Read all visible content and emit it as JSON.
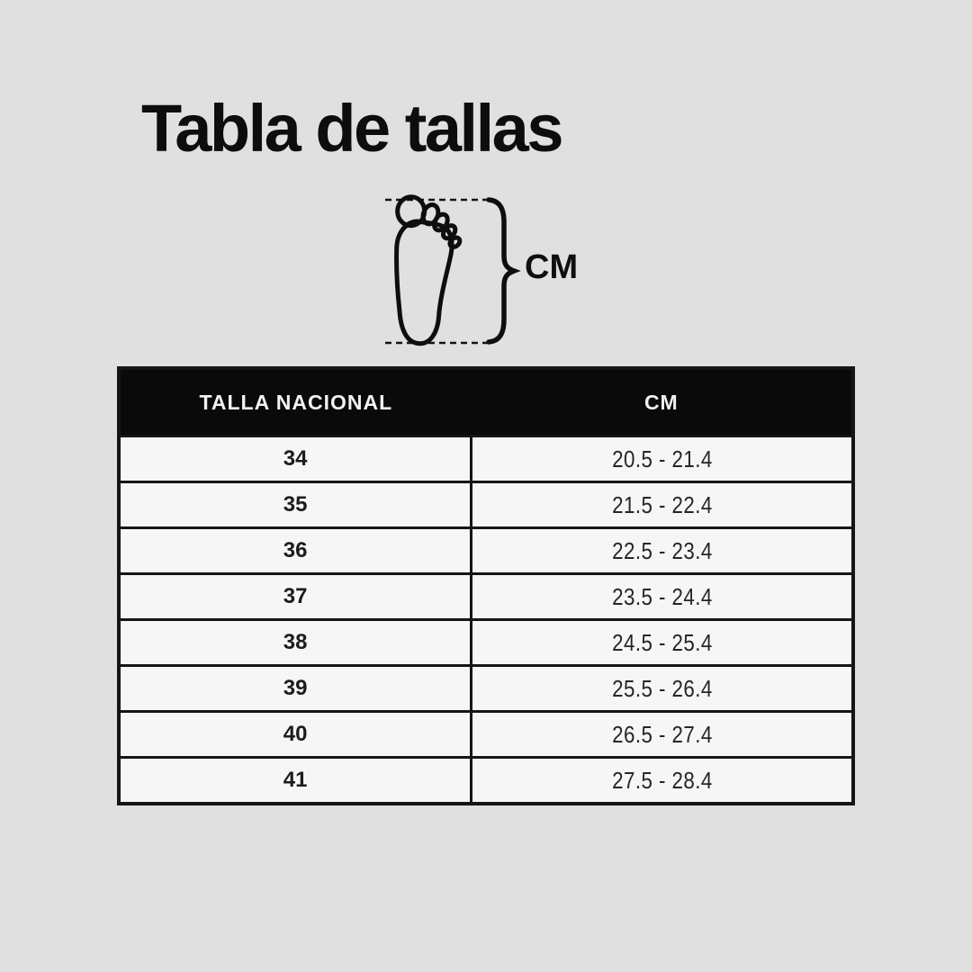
{
  "title": "Tabla de tallas",
  "diagram": {
    "unit_label": "CM",
    "icons": {
      "foot": "footprint-icon",
      "brace": "curly-brace-icon",
      "measure_lines": "dashed-measure-lines"
    }
  },
  "chart_data": {
    "type": "table",
    "title": "Tabla de tallas",
    "columns": [
      "TALLA NACIONAL",
      "CM"
    ],
    "rows": [
      [
        "34",
        "20.5 - 21.4"
      ],
      [
        "35",
        "21.5 - 22.4"
      ],
      [
        "36",
        "22.5 - 23.4"
      ],
      [
        "37",
        "23.5 - 24.4"
      ],
      [
        "38",
        "24.5 - 25.4"
      ],
      [
        "39",
        "25.5 - 26.4"
      ],
      [
        "40",
        "26.5 - 27.4"
      ],
      [
        "41",
        "27.5 - 28.4"
      ]
    ],
    "unit_annotation": "CM"
  },
  "colors": {
    "background": "#e1e0e0",
    "table_row_background": "#f7f6f6",
    "header_background": "#0a0a0a",
    "header_text": "#f2f2f2",
    "border": "#151515",
    "text": "#1c1c1c"
  }
}
